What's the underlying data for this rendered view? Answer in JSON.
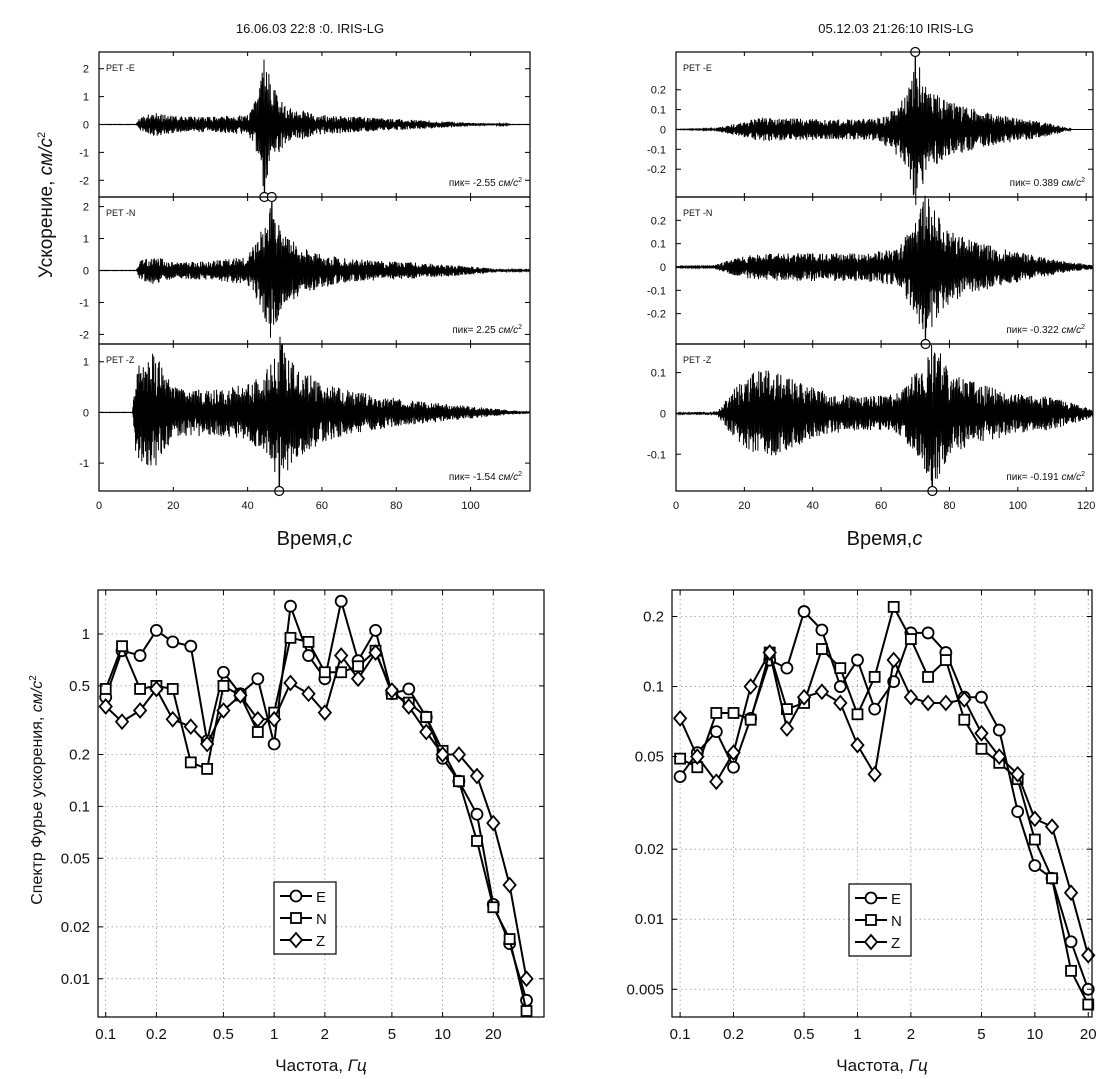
{
  "texts": {
    "acc_ylabel": "Ускорение, ",
    "acc_yunit": "см/с",
    "acc_xlabel": "Время,",
    "acc_xunit": "с",
    "spec_ylabel": "Спектр Фурье ускорения, ",
    "spec_yunit": "см/с",
    "spec_xlabel": "Частота, ",
    "spec_xunit": "Гц",
    "peak_prefix": "пик=",
    "peak_unit": "см/с",
    "unit_sup": "2"
  },
  "chart_data": [
    {
      "type": "line",
      "title": "16.06.03 22:8 :0.  IRIS-LG",
      "xlabel": "Время, с",
      "ylabel": "Ускорение, см/с2",
      "xlim": [
        0,
        116
      ],
      "xticks": [
        0,
        20,
        40,
        60,
        80,
        100
      ],
      "panels": [
        {
          "name": "PET -E",
          "ylim": [
            -2.6,
            2.6
          ],
          "yticks": [
            -2,
            -1,
            0,
            1,
            2
          ],
          "peak": "-2.55",
          "peak_time": 44.5,
          "peak_marker_edge": "bottom",
          "envelope": [
            [
              0,
              0.004
            ],
            [
              10,
              0.004
            ],
            [
              11,
              0.25
            ],
            [
              15,
              0.45
            ],
            [
              20,
              0.3
            ],
            [
              30,
              0.28
            ],
            [
              40,
              0.35
            ],
            [
              43,
              1.2
            ],
            [
              44.5,
              2.55
            ],
            [
              47,
              1.5
            ],
            [
              50,
              0.7
            ],
            [
              60,
              0.35
            ],
            [
              70,
              0.28
            ],
            [
              80,
              0.2
            ],
            [
              90,
              0.14
            ],
            [
              100,
              0.06
            ],
            [
              110,
              0.02
            ],
            [
              111,
              0.004
            ]
          ]
        },
        {
          "name": "PET -N",
          "ylim": [
            -2.3,
            2.3
          ],
          "yticks": [
            -2,
            -1,
            0,
            1,
            2
          ],
          "peak": "2.25",
          "peak_time": 46.5,
          "peak_marker_edge": "top",
          "envelope": [
            [
              0,
              0.004
            ],
            [
              10,
              0.004
            ],
            [
              11,
              0.3
            ],
            [
              15,
              0.45
            ],
            [
              20,
              0.25
            ],
            [
              30,
              0.3
            ],
            [
              40,
              0.45
            ],
            [
              44,
              1.3
            ],
            [
              46.5,
              2.25
            ],
            [
              49,
              1.2
            ],
            [
              55,
              0.7
            ],
            [
              65,
              0.4
            ],
            [
              75,
              0.3
            ],
            [
              85,
              0.25
            ],
            [
              95,
              0.18
            ],
            [
              105,
              0.08
            ],
            [
              112,
              0.02
            ]
          ]
        },
        {
          "name": "PET -Z",
          "ylim": [
            -1.55,
            1.35
          ],
          "yticks": [
            -1,
            0,
            1
          ],
          "peak": "-1.54",
          "peak_time": 48.5,
          "peak_marker_edge": "bottom",
          "envelope": [
            [
              0,
              0.003
            ],
            [
              9,
              0.003
            ],
            [
              10,
              0.9
            ],
            [
              12,
              1.0
            ],
            [
              15,
              1.2
            ],
            [
              20,
              0.5
            ],
            [
              30,
              0.45
            ],
            [
              40,
              0.55
            ],
            [
              46,
              0.9
            ],
            [
              48.5,
              1.54
            ],
            [
              52,
              1.0
            ],
            [
              60,
              0.6
            ],
            [
              70,
              0.4
            ],
            [
              80,
              0.28
            ],
            [
              90,
              0.2
            ],
            [
              100,
              0.12
            ],
            [
              110,
              0.05
            ],
            [
              116,
              0.02
            ]
          ]
        }
      ]
    },
    {
      "type": "line",
      "title": "05.12.03 21:26:10  IRIS-LG",
      "xlabel": "Время, с",
      "ylabel": "",
      "xlim": [
        0,
        122
      ],
      "xticks": [
        0,
        20,
        40,
        60,
        80,
        100,
        120
      ],
      "panels": [
        {
          "name": "PET -E",
          "ylim": [
            -0.34,
            0.39
          ],
          "yticks": [
            -0.2,
            -0.1,
            0,
            0.1,
            0.2
          ],
          "peak": "0.389",
          "peak_time": 70,
          "peak_marker_edge": "top",
          "envelope": [
            [
              0,
              0.001
            ],
            [
              10,
              0.003
            ],
            [
              15,
              0.02
            ],
            [
              25,
              0.06
            ],
            [
              35,
              0.055
            ],
            [
              50,
              0.05
            ],
            [
              60,
              0.06
            ],
            [
              68,
              0.2
            ],
            [
              70,
              0.389
            ],
            [
              74,
              0.2
            ],
            [
              80,
              0.14
            ],
            [
              90,
              0.09
            ],
            [
              100,
              0.06
            ],
            [
              110,
              0.03
            ],
            [
              114,
              0.01
            ],
            [
              116,
              0.0
            ]
          ]
        },
        {
          "name": "PET -N",
          "ylim": [
            -0.33,
            0.3
          ],
          "yticks": [
            -0.2,
            -0.1,
            0,
            0.1,
            0.2
          ],
          "peak": "-0.322",
          "peak_time": 73,
          "peak_marker_edge": "bottom",
          "envelope": [
            [
              0,
              0.002
            ],
            [
              10,
              0.004
            ],
            [
              18,
              0.04
            ],
            [
              25,
              0.06
            ],
            [
              40,
              0.06
            ],
            [
              55,
              0.06
            ],
            [
              65,
              0.08
            ],
            [
              70,
              0.2
            ],
            [
              73,
              0.322
            ],
            [
              78,
              0.18
            ],
            [
              85,
              0.12
            ],
            [
              95,
              0.08
            ],
            [
              105,
              0.05
            ],
            [
              115,
              0.02
            ],
            [
              122,
              0.01
            ]
          ]
        },
        {
          "name": "PET -Z",
          "ylim": [
            -0.19,
            0.17
          ],
          "yticks": [
            -0.1,
            0,
            0.1
          ],
          "peak": "-0.191",
          "peak_time": 75,
          "peak_marker_edge": "bottom",
          "envelope": [
            [
              0,
              0.002
            ],
            [
              12,
              0.005
            ],
            [
              17,
              0.06
            ],
            [
              22,
              0.1
            ],
            [
              28,
              0.11
            ],
            [
              35,
              0.08
            ],
            [
              45,
              0.05
            ],
            [
              55,
              0.04
            ],
            [
              65,
              0.05
            ],
            [
              72,
              0.12
            ],
            [
              75,
              0.191
            ],
            [
              80,
              0.1
            ],
            [
              90,
              0.07
            ],
            [
              100,
              0.05
            ],
            [
              110,
              0.04
            ],
            [
              118,
              0.02
            ],
            [
              122,
              0.01
            ]
          ]
        }
      ]
    },
    {
      "type": "line",
      "log_x": true,
      "log_y": true,
      "xlabel": "Частота, Гц",
      "ylabel": "Спектр Фурье ускорения, см/с2",
      "xlim": [
        0.09,
        40
      ],
      "ylim": [
        0.006,
        1.8
      ],
      "xticks": [
        0.1,
        0.2,
        0.5,
        1,
        2,
        5,
        10,
        20
      ],
      "yticks": [
        0.01,
        0.02,
        0.05,
        0.1,
        0.2,
        0.5,
        1
      ],
      "grid": true,
      "legend": "lower-center",
      "series": [
        {
          "name": "E",
          "marker": "circle",
          "x": [
            0.1,
            0.125,
            0.16,
            0.2,
            0.25,
            0.32,
            0.4,
            0.5,
            0.63,
            0.8,
            1.0,
            1.25,
            1.6,
            2.0,
            2.5,
            3.15,
            4.0,
            5.0,
            6.3,
            8.0,
            10,
            12.5,
            16,
            20,
            25,
            31.5
          ],
          "y": [
            0.43,
            0.8,
            0.75,
            1.05,
            0.9,
            0.85,
            0.24,
            0.6,
            0.45,
            0.55,
            0.23,
            1.45,
            0.75,
            0.55,
            1.55,
            0.7,
            1.05,
            0.45,
            0.48,
            0.33,
            0.19,
            0.14,
            0.09,
            0.027,
            0.016,
            0.0075
          ]
        },
        {
          "name": "N",
          "marker": "square",
          "x": [
            0.1,
            0.125,
            0.16,
            0.2,
            0.25,
            0.32,
            0.4,
            0.5,
            0.63,
            0.8,
            1.0,
            1.25,
            1.6,
            2.0,
            2.5,
            3.15,
            4.0,
            5.0,
            6.3,
            8.0,
            10,
            12.5,
            16,
            20,
            25,
            31.5
          ],
          "y": [
            0.48,
            0.85,
            0.48,
            0.5,
            0.48,
            0.18,
            0.165,
            0.5,
            0.44,
            0.27,
            0.35,
            0.95,
            0.9,
            0.6,
            0.6,
            0.65,
            0.8,
            0.45,
            0.4,
            0.33,
            0.21,
            0.14,
            0.063,
            0.026,
            0.017,
            0.0065
          ]
        },
        {
          "name": "Z",
          "marker": "diamond",
          "x": [
            0.1,
            0.125,
            0.16,
            0.2,
            0.25,
            0.32,
            0.4,
            0.5,
            0.63,
            0.8,
            1.0,
            1.25,
            1.6,
            2.0,
            2.5,
            3.15,
            4.0,
            5.0,
            6.3,
            8.0,
            10,
            12.5,
            16,
            20,
            25,
            31.5
          ],
          "y": [
            0.38,
            0.31,
            0.36,
            0.48,
            0.32,
            0.29,
            0.23,
            0.36,
            0.44,
            0.32,
            0.32,
            0.52,
            0.45,
            0.35,
            0.75,
            0.55,
            0.78,
            0.47,
            0.38,
            0.27,
            0.2,
            0.2,
            0.15,
            0.08,
            0.035,
            0.01
          ]
        }
      ]
    },
    {
      "type": "line",
      "log_x": true,
      "log_y": true,
      "xlabel": "Частота, Гц",
      "ylabel": "",
      "xlim": [
        0.09,
        21
      ],
      "ylim": [
        0.0038,
        0.26
      ],
      "xticks": [
        0.1,
        0.2,
        0.5,
        1,
        2,
        5,
        10,
        20
      ],
      "yticks": [
        0.005,
        0.01,
        0.02,
        0.05,
        0.1,
        0.2
      ],
      "grid": true,
      "legend": "lower-center",
      "series": [
        {
          "name": "E",
          "marker": "circle",
          "x": [
            0.1,
            0.125,
            0.16,
            0.2,
            0.25,
            0.32,
            0.4,
            0.5,
            0.63,
            0.8,
            1.0,
            1.25,
            1.6,
            2.0,
            2.5,
            3.15,
            4.0,
            5.0,
            6.3,
            8.0,
            10,
            12.5,
            16,
            20
          ],
          "y": [
            0.041,
            0.052,
            0.064,
            0.045,
            0.073,
            0.13,
            0.12,
            0.21,
            0.175,
            0.1,
            0.13,
            0.08,
            0.105,
            0.17,
            0.17,
            0.14,
            0.09,
            0.09,
            0.065,
            0.029,
            0.017,
            0.015,
            0.008,
            0.005
          ]
        },
        {
          "name": "N",
          "marker": "square",
          "x": [
            0.1,
            0.125,
            0.16,
            0.2,
            0.25,
            0.32,
            0.4,
            0.5,
            0.63,
            0.8,
            1.0,
            1.25,
            1.6,
            2.0,
            2.5,
            3.15,
            4.0,
            5.0,
            6.3,
            8.0,
            10,
            12.5,
            16,
            20
          ],
          "y": [
            0.049,
            0.045,
            0.077,
            0.077,
            0.072,
            0.14,
            0.08,
            0.085,
            0.145,
            0.12,
            0.076,
            0.11,
            0.22,
            0.16,
            0.11,
            0.13,
            0.072,
            0.054,
            0.047,
            0.04,
            0.022,
            0.015,
            0.006,
            0.0043
          ]
        },
        {
          "name": "Z",
          "marker": "diamond",
          "x": [
            0.1,
            0.125,
            0.16,
            0.2,
            0.25,
            0.32,
            0.4,
            0.5,
            0.63,
            0.8,
            1.0,
            1.25,
            1.6,
            2.0,
            2.5,
            3.15,
            4.0,
            5.0,
            6.3,
            8.0,
            10,
            12.5,
            16,
            20
          ],
          "y": [
            0.073,
            0.05,
            0.039,
            0.052,
            0.1,
            0.14,
            0.066,
            0.09,
            0.095,
            0.085,
            0.056,
            0.042,
            0.13,
            0.09,
            0.085,
            0.085,
            0.088,
            0.063,
            0.05,
            0.042,
            0.027,
            0.025,
            0.013,
            0.007
          ]
        }
      ]
    }
  ]
}
